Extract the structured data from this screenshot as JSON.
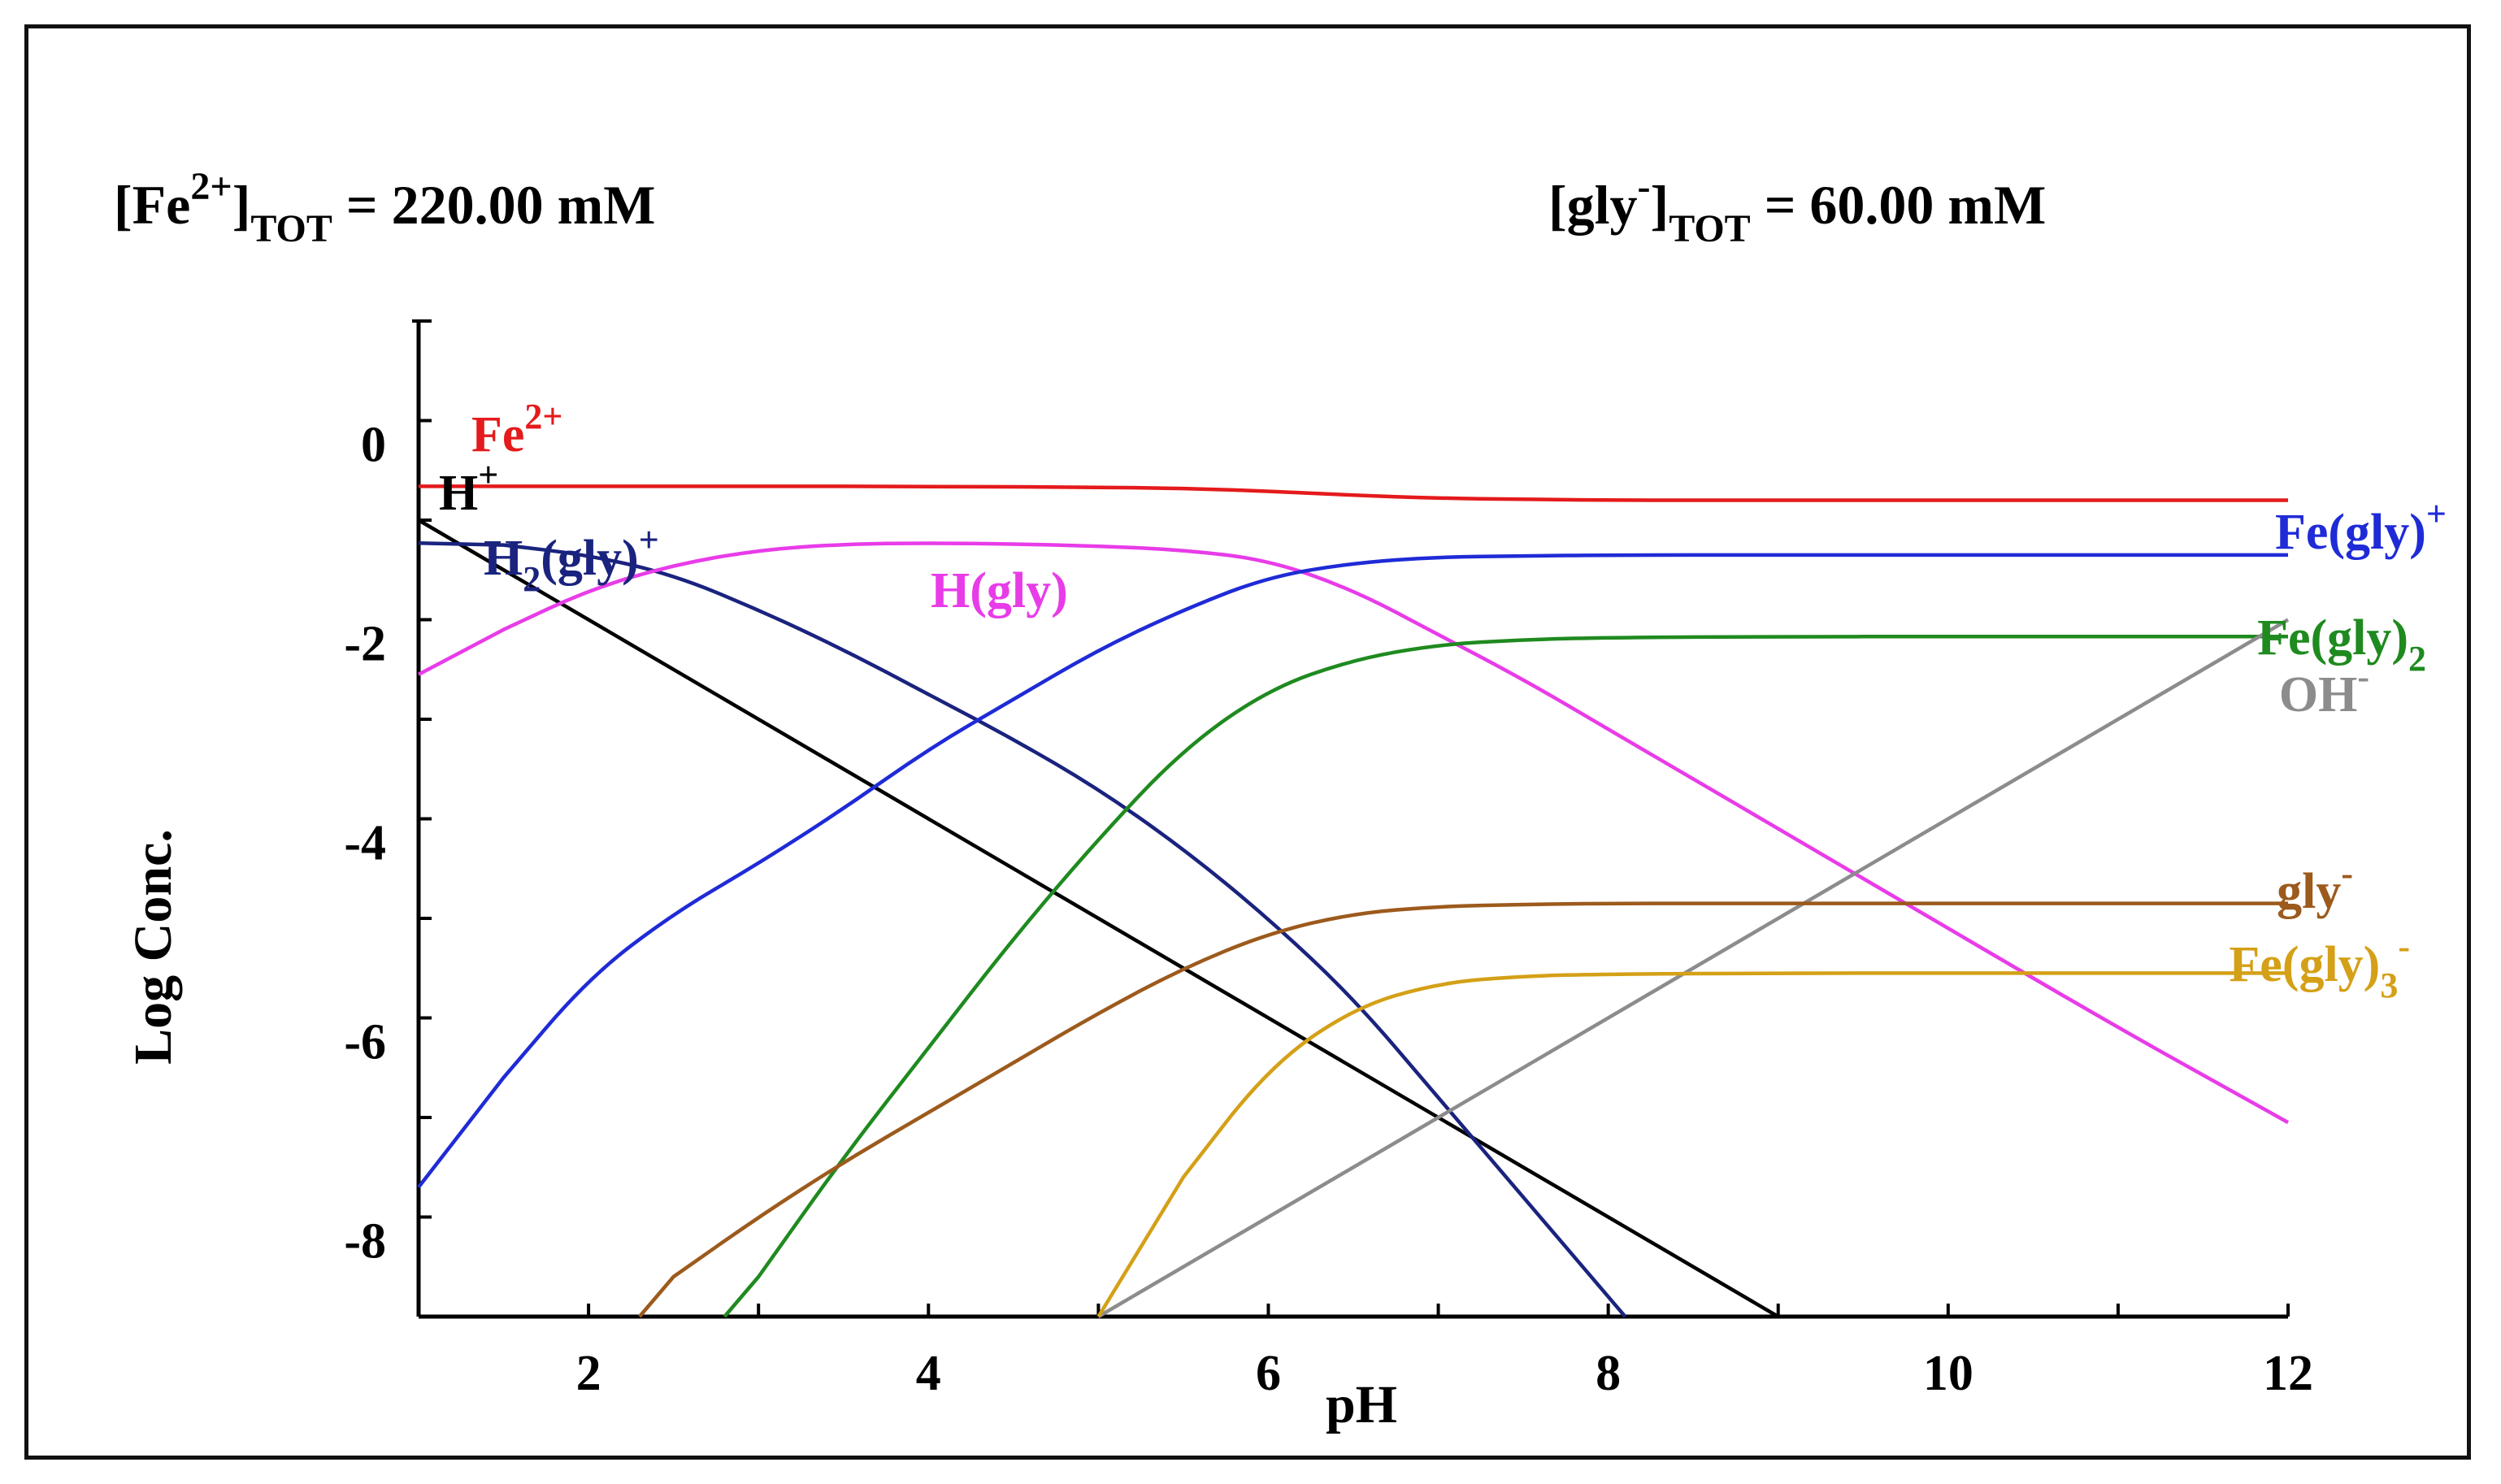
{
  "header": {
    "left": {
      "main": "[Fe",
      "sup": "2+",
      "close": "]",
      "sub": "TOT",
      "value": " = 220.00 mM"
    },
    "right": {
      "main": "[gly",
      "sup": "-",
      "close": "]",
      "sub": "TOT",
      "value": " = 60.00 mM"
    }
  },
  "chart_data": {
    "type": "line",
    "title": "",
    "xlabel": "pH",
    "ylabel": "Log Conc.",
    "xlim": [
      1,
      12
    ],
    "ylim": [
      -9,
      1
    ],
    "x_ticks": [
      2,
      4,
      6,
      8,
      10,
      12
    ],
    "y_ticks": [
      0,
      -2,
      -4,
      -6,
      -8
    ],
    "grid": false,
    "series": [
      {
        "name": "Fe2+",
        "label": "Fe",
        "sup": "2+",
        "color": "#e41a1c",
        "x": [
          1,
          2,
          3,
          4,
          5,
          5.5,
          6,
          6.5,
          7,
          7.5,
          8,
          9,
          10,
          11,
          12
        ],
        "y": [
          -0.66,
          -0.66,
          -0.66,
          -0.66,
          -0.67,
          -0.68,
          -0.71,
          -0.75,
          -0.78,
          -0.79,
          -0.8,
          -0.8,
          -0.8,
          -0.8,
          -0.8
        ]
      },
      {
        "name": "H+",
        "label": "H",
        "sup": "+",
        "color": "#000000",
        "x": [
          1,
          9
        ],
        "y": [
          -1,
          -9
        ]
      },
      {
        "name": "H2(gly)+",
        "label": "H",
        "sub": "2",
        "label2": "(gly)",
        "sup": "+",
        "color": "#1a237e",
        "x": [
          1,
          1.5,
          2,
          2.5,
          3,
          3.5,
          4,
          4.5,
          5,
          5.5,
          6,
          6.5,
          7,
          7.5,
          8,
          8.1
        ],
        "y": [
          -1.23,
          -1.25,
          -1.35,
          -1.55,
          -1.9,
          -2.3,
          -2.75,
          -3.2,
          -3.7,
          -4.3,
          -5.0,
          -5.8,
          -6.8,
          -7.8,
          -8.8,
          -9.0
        ]
      },
      {
        "name": "H(gly)",
        "label": "H(gly)",
        "color": "#e83ce8",
        "x": [
          1,
          1.5,
          2,
          2.5,
          3,
          3.5,
          4,
          4.5,
          5,
          5.5,
          6,
          6.5,
          7,
          7.5,
          8,
          8.5,
          9,
          10,
          11,
          12
        ],
        "y": [
          -2.55,
          -2.1,
          -1.7,
          -1.45,
          -1.3,
          -1.24,
          -1.23,
          -1.24,
          -1.26,
          -1.3,
          -1.4,
          -1.7,
          -2.15,
          -2.6,
          -3.1,
          -3.6,
          -4.1,
          -5.1,
          -6.1,
          -7.05
        ]
      },
      {
        "name": "Fe(gly)+",
        "label": "Fe(gly)",
        "sup": "+",
        "color": "#1f2bd6",
        "x": [
          1,
          1.5,
          2,
          2.5,
          3,
          3.5,
          4,
          4.5,
          5,
          5.5,
          6,
          6.5,
          7,
          7.5,
          8,
          9,
          10,
          11,
          12
        ],
        "y": [
          -7.7,
          -6.6,
          -5.6,
          -4.95,
          -4.45,
          -3.9,
          -3.3,
          -2.8,
          -2.3,
          -1.9,
          -1.57,
          -1.43,
          -1.37,
          -1.36,
          -1.35,
          -1.35,
          -1.35,
          -1.35,
          -1.35
        ]
      },
      {
        "name": "Fe(gly)2",
        "label": "Fe(gly)",
        "sub": "2",
        "color": "#1f8a1f",
        "x": [
          2.8,
          3,
          3.5,
          4,
          4.5,
          5,
          5.5,
          6,
          6.5,
          7,
          7.5,
          8,
          9,
          10,
          11,
          12
        ],
        "y": [
          -9.0,
          -8.6,
          -7.4,
          -6.3,
          -5.2,
          -4.2,
          -3.3,
          -2.7,
          -2.4,
          -2.25,
          -2.2,
          -2.18,
          -2.17,
          -2.17,
          -2.17,
          -2.17
        ]
      },
      {
        "name": "OH-",
        "label": "OH",
        "sup": "-",
        "color": "#8c8c8c",
        "x": [
          5,
          12
        ],
        "y": [
          -9,
          -2
        ]
      },
      {
        "name": "gly-",
        "label": "gly",
        "sup": "-",
        "color": "#9c5a1c",
        "x": [
          2.3,
          2.5,
          3,
          3.5,
          4,
          4.5,
          5,
          5.5,
          6,
          6.5,
          7,
          7.5,
          8,
          9,
          10,
          11,
          12
        ],
        "y": [
          -9.0,
          -8.6,
          -8.0,
          -7.45,
          -6.95,
          -6.45,
          -5.95,
          -5.5,
          -5.15,
          -4.95,
          -4.88,
          -4.86,
          -4.85,
          -4.85,
          -4.85,
          -4.85,
          -4.85
        ]
      },
      {
        "name": "Fe(gly)3-",
        "label": "Fe(gly)",
        "sub": "3",
        "sup": "-",
        "color": "#d4a017",
        "x": [
          5,
          5.5,
          6,
          6.5,
          7,
          7.5,
          8,
          9,
          10,
          11,
          12
        ],
        "y": [
          -9.0,
          -7.6,
          -6.5,
          -5.9,
          -5.65,
          -5.58,
          -5.56,
          -5.55,
          -5.55,
          -5.55,
          -5.55
        ]
      }
    ]
  }
}
